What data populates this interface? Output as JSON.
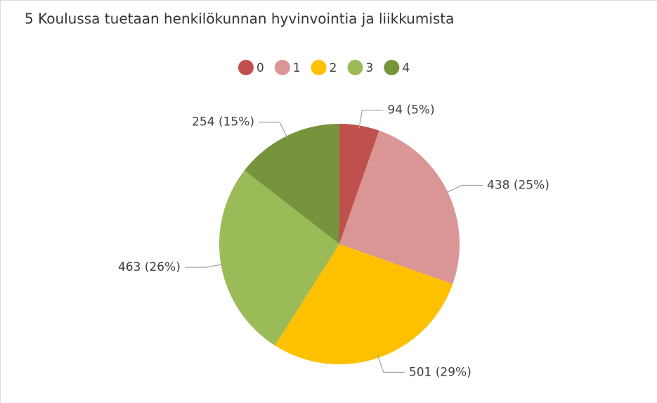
{
  "chart_data": {
    "type": "pie",
    "title": "5 Koulussa tuetaan henkilökunnan hyvinvointia ja liikkumista",
    "categories": [
      "0",
      "1",
      "2",
      "3",
      "4"
    ],
    "values": [
      94,
      438,
      501,
      463,
      254
    ],
    "value_labels": [
      "94 (5%)",
      "438 (25%)",
      "501 (29%)",
      "463 (26%)",
      "254 (15%)"
    ],
    "colors": [
      "#c0504d",
      "#d99694",
      "#ffc000",
      "#9bbb59",
      "#77933c"
    ]
  }
}
